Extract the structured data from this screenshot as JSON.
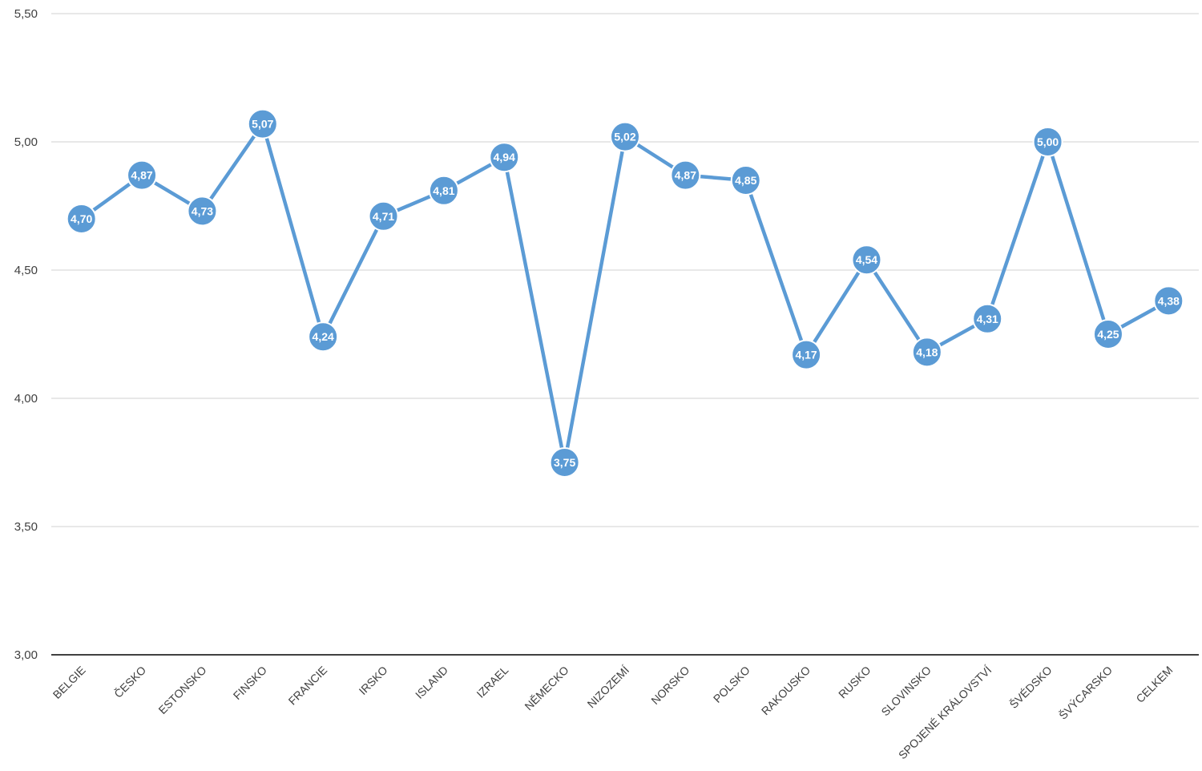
{
  "chart_data": {
    "type": "line",
    "title": "",
    "xlabel": "",
    "ylabel": "",
    "ylim": [
      3.0,
      5.5
    ],
    "y_ticks": [
      "3,00",
      "3,50",
      "4,00",
      "4,50",
      "5,00",
      "5,50"
    ],
    "y_tick_values": [
      3.0,
      3.5,
      4.0,
      4.5,
      5.0,
      5.5
    ],
    "grid": true,
    "legend": "none",
    "categories": [
      "BELGIE",
      "ČESKO",
      "ESTONSKO",
      "FINSKO",
      "FRANCIE",
      "IRSKO",
      "ISLAND",
      "IZRAEL",
      "NĚMECKO",
      "NIZOZEMÍ",
      "NORSKO",
      "POLSKO",
      "RAKOUSKO",
      "RUSKO",
      "SLOVINSKO",
      "SPOJENÉ KRÁLOVSTVÍ",
      "ŠVÉDSKO",
      "ŠVÝCARSKO",
      "CELKEM"
    ],
    "series": [
      {
        "values": [
          4.7,
          4.87,
          4.73,
          5.07,
          4.24,
          4.71,
          4.81,
          4.94,
          3.75,
          5.02,
          4.87,
          4.85,
          4.17,
          4.54,
          4.18,
          4.31,
          5.0,
          4.25,
          4.38
        ],
        "data_labels": [
          "4,70",
          "4,87",
          "4,73",
          "5,07",
          "4,24",
          "4,71",
          "4,81",
          "4,94",
          "3,75",
          "5,02",
          "4,87",
          "4,85",
          "4,17",
          "4,54",
          "4,18",
          "4,31",
          "5,00",
          "4,25",
          "4,38"
        ],
        "color": "#5b9bd5"
      }
    ],
    "colors": {
      "line": "#5b9bd5",
      "marker_stroke": "#ffffff",
      "grid": "#d9d9d9",
      "axis": "#404040",
      "label_text": "#ffffff"
    }
  }
}
